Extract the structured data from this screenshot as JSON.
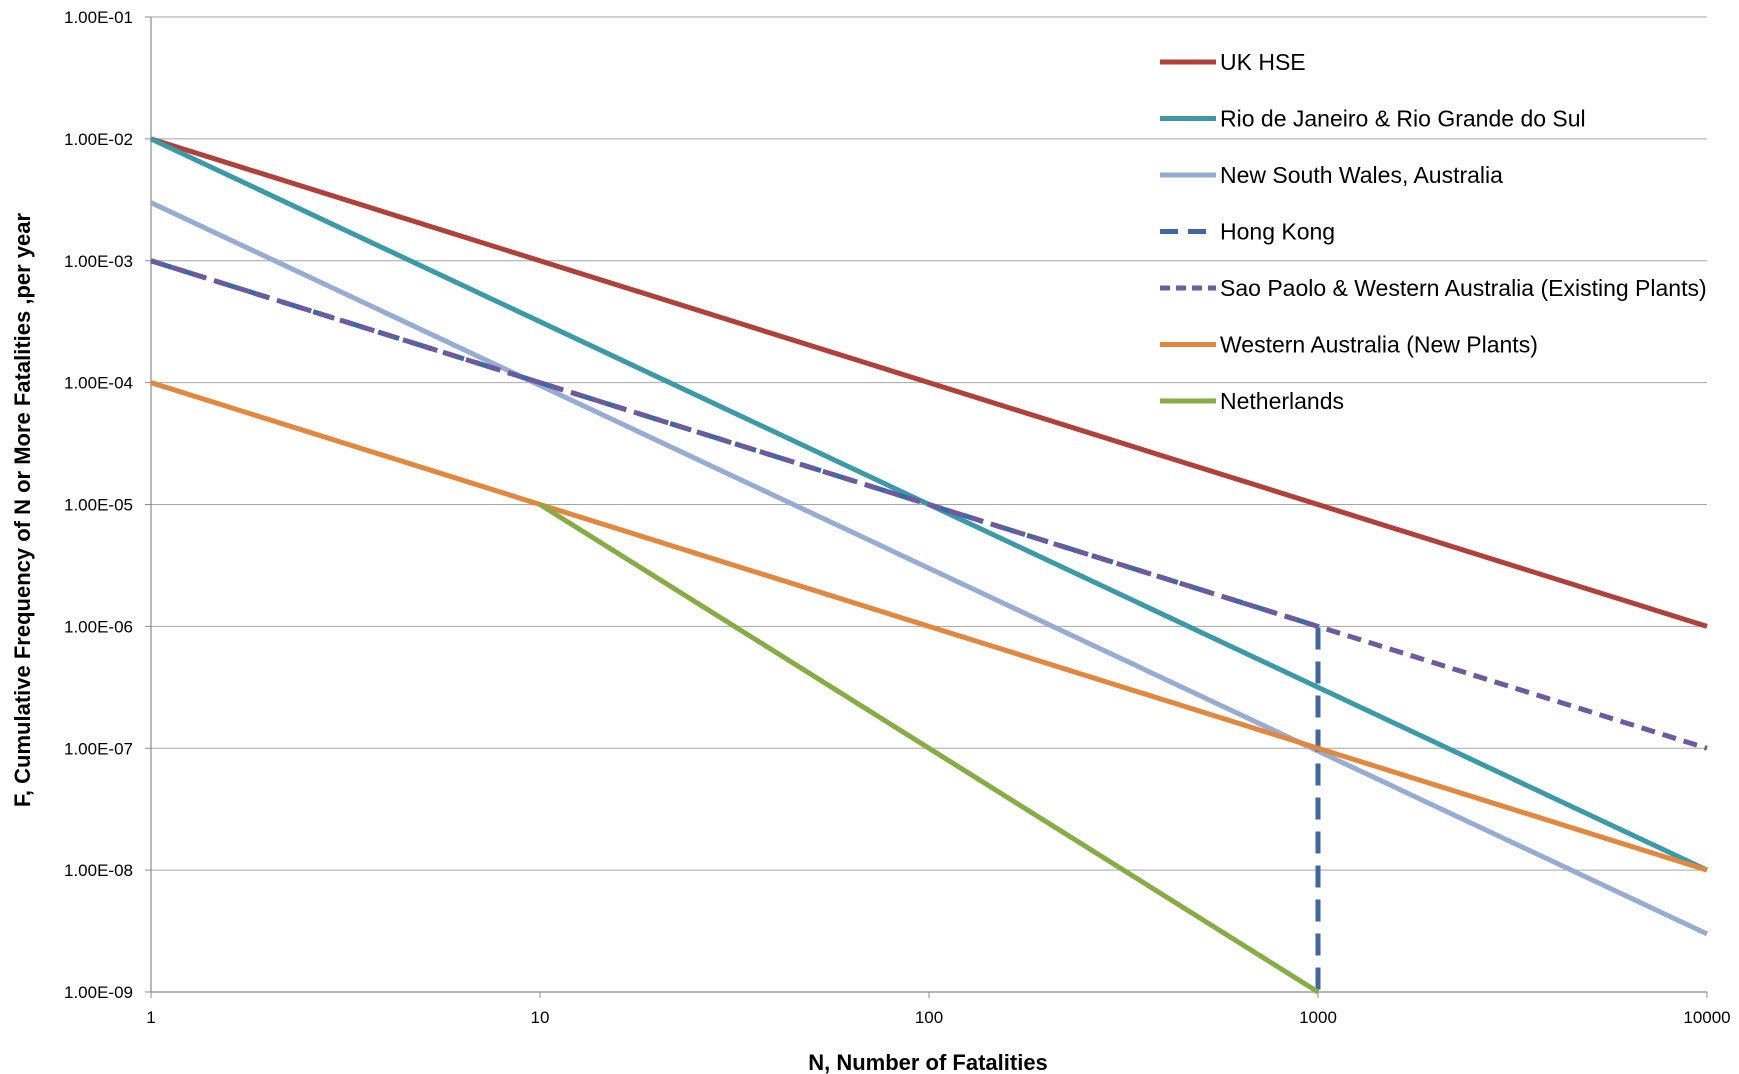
{
  "chart_data": {
    "type": "line",
    "title": "",
    "xlabel": "N, Number of Fatalities",
    "ylabel": "F, Cumulative Frequency of N or More Fatalities ,per year",
    "x_scale": "log",
    "y_scale": "log",
    "xlim": [
      1,
      10000
    ],
    "ylim": [
      1e-09,
      0.1
    ],
    "x_ticks": [
      {
        "value": 1,
        "label": "1"
      },
      {
        "value": 10,
        "label": "10"
      },
      {
        "value": 100,
        "label": "100"
      },
      {
        "value": 1000,
        "label": "1000"
      },
      {
        "value": 10000,
        "label": "10000"
      }
    ],
    "y_ticks": [
      {
        "value": 1e-09,
        "label": "1.00E-09"
      },
      {
        "value": 1e-08,
        "label": "1.00E-08"
      },
      {
        "value": 1e-07,
        "label": "1.00E-07"
      },
      {
        "value": 1e-06,
        "label": "1.00E-06"
      },
      {
        "value": 1e-05,
        "label": "1.00E-05"
      },
      {
        "value": 0.0001,
        "label": "1.00E-04"
      },
      {
        "value": 0.001,
        "label": "1.00E-03"
      },
      {
        "value": 0.01,
        "label": "1.00E-02"
      },
      {
        "value": 0.1,
        "label": "1.00E-01"
      }
    ],
    "grid": "horizontal",
    "legend_position": "top-right",
    "series": [
      {
        "name": "UK HSE",
        "color": "#b13f3a",
        "dash": "solid",
        "x": [
          1,
          10000
        ],
        "y": [
          0.01,
          1e-06
        ]
      },
      {
        "name": "Rio de Janeiro & Rio Grande do Sul",
        "color": "#3a9aa8",
        "dash": "solid",
        "x": [
          1,
          10000
        ],
        "y": [
          0.01,
          1e-08
        ]
      },
      {
        "name": "New South Wales, Australia",
        "color": "#96acd3",
        "dash": "solid",
        "x": [
          1,
          10000
        ],
        "y": [
          0.003,
          3e-09
        ]
      },
      {
        "name": "Hong Kong",
        "color": "#3f67a3",
        "dash": "long",
        "x": [
          1,
          1000,
          1000
        ],
        "y": [
          0.001,
          1e-06,
          1e-09
        ]
      },
      {
        "name": "Sao Paolo & Western Australia (Existing Plants)",
        "color": "#6e5aa0",
        "dash": "short",
        "x": [
          1,
          10000
        ],
        "y": [
          0.001,
          1e-07
        ]
      },
      {
        "name": "Western Australia (New Plants)",
        "color": "#e3873e",
        "dash": "solid",
        "x": [
          1,
          10000
        ],
        "y": [
          0.0001,
          1e-08
        ]
      },
      {
        "name": "Netherlands",
        "color": "#86ad42",
        "dash": "solid",
        "x": [
          10,
          1000
        ],
        "y": [
          1e-05,
          1e-09
        ]
      }
    ]
  }
}
